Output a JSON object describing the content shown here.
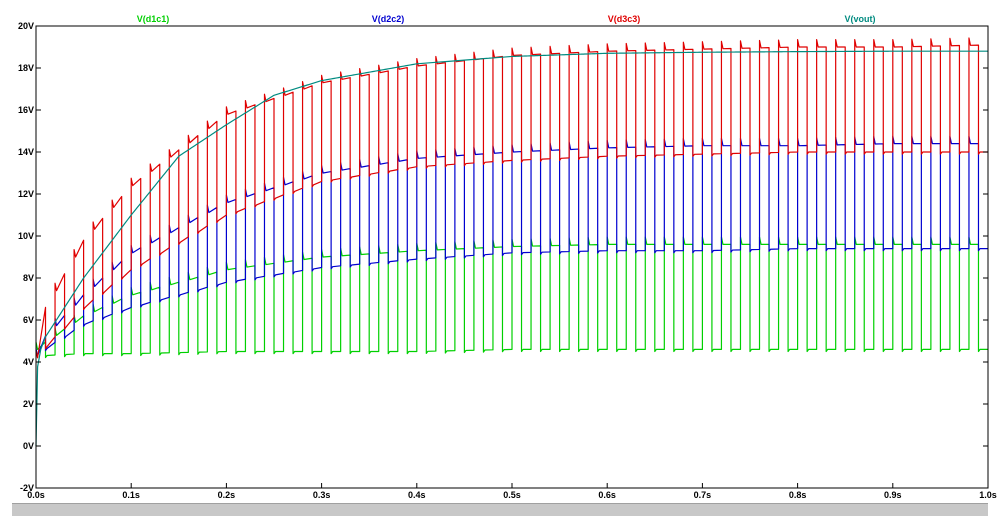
{
  "chart_data": {
    "type": "line",
    "title": "",
    "xlabel": "",
    "ylabel": "",
    "xlim": [
      0,
      1.0
    ],
    "ylim": [
      -2,
      20
    ],
    "grid": false,
    "x_ticks": [
      0.0,
      0.1,
      0.2,
      0.3,
      0.4,
      0.5,
      0.6,
      0.7,
      0.8,
      0.9,
      1.0
    ],
    "x_tick_labels": [
      "0.0s",
      "0.1s",
      "0.2s",
      "0.3s",
      "0.4s",
      "0.5s",
      "0.6s",
      "0.7s",
      "0.8s",
      "0.9s",
      "1.0s"
    ],
    "y_ticks": [
      -2,
      0,
      2,
      4,
      6,
      8,
      10,
      12,
      14,
      16,
      18,
      20
    ],
    "y_tick_labels": [
      "-2V",
      "0V",
      "2V",
      "4V",
      "6V",
      "8V",
      "10V",
      "12V",
      "14V",
      "16V",
      "18V",
      "20V"
    ],
    "legend_placement": "top",
    "switching_period_s": 0.02,
    "series": [
      {
        "name": "V(d1c1)",
        "color": "#00d000",
        "waveform": "square",
        "time_s": [
          0,
          0.005,
          0.05,
          0.1,
          0.2,
          0.3,
          0.4,
          0.5,
          0.6,
          0.7,
          0.8,
          0.9,
          1.0
        ],
        "high_V": [
          4.6,
          4.8,
          6.2,
          7.2,
          8.4,
          9.0,
          9.3,
          9.5,
          9.6,
          9.6,
          9.6,
          9.6,
          9.6
        ],
        "low_V": [
          4.2,
          4.3,
          4.4,
          4.4,
          4.5,
          4.5,
          4.5,
          4.6,
          4.6,
          4.6,
          4.6,
          4.6,
          4.6
        ]
      },
      {
        "name": "V(d2c2)",
        "color": "#0000d0",
        "waveform": "square",
        "time_s": [
          0,
          0.005,
          0.05,
          0.1,
          0.2,
          0.3,
          0.4,
          0.5,
          0.6,
          0.7,
          0.8,
          0.9,
          1.0
        ],
        "high_V": [
          4.3,
          5.0,
          7.2,
          9.2,
          11.6,
          13.0,
          13.7,
          14.0,
          14.2,
          14.3,
          14.3,
          14.4,
          14.4
        ],
        "low_V": [
          4.0,
          4.5,
          5.8,
          6.6,
          7.8,
          8.5,
          8.9,
          9.2,
          9.3,
          9.3,
          9.4,
          9.4,
          9.4
        ]
      },
      {
        "name": "V(d3c3)",
        "color": "#e00000",
        "waveform": "square",
        "time_s": [
          0,
          0.005,
          0.05,
          0.1,
          0.2,
          0.3,
          0.4,
          0.5,
          0.6,
          0.7,
          0.8,
          0.9,
          1.0
        ],
        "high_V": [
          4.2,
          6.2,
          9.8,
          12.4,
          15.8,
          17.3,
          18.1,
          18.6,
          18.8,
          18.9,
          19.0,
          19.0,
          19.1
        ],
        "low_V": [
          4.0,
          4.5,
          6.6,
          8.4,
          11.0,
          12.6,
          13.3,
          13.6,
          13.8,
          13.9,
          14.0,
          14.0,
          14.0
        ]
      },
      {
        "name": "V(vout)",
        "color": "#008b80",
        "waveform": "smooth",
        "time_s": [
          0,
          0.001,
          0.005,
          0.01,
          0.02,
          0.05,
          0.1,
          0.15,
          0.2,
          0.25,
          0.3,
          0.4,
          0.5,
          0.6,
          0.7,
          0.8,
          0.9,
          1.0
        ],
        "values_V": [
          0,
          3.6,
          4.6,
          5.2,
          5.9,
          8.0,
          11.0,
          13.8,
          15.3,
          16.7,
          17.4,
          18.2,
          18.55,
          18.7,
          18.75,
          18.78,
          18.8,
          18.8
        ]
      }
    ]
  }
}
